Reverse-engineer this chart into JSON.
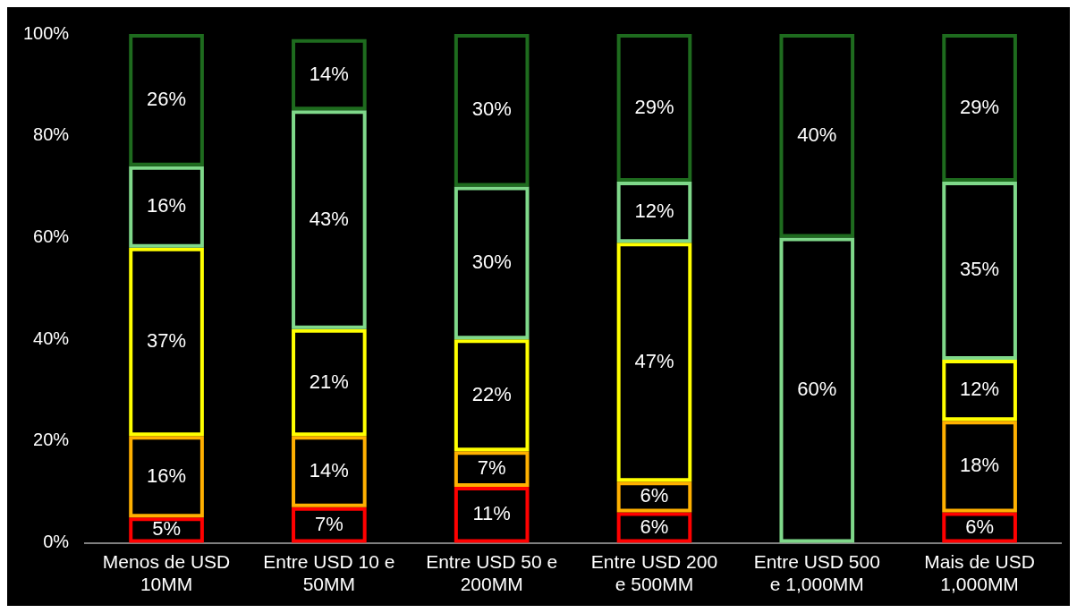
{
  "chart_data": {
    "type": "bar",
    "stacked": true,
    "grid": false,
    "legend": false,
    "categories": [
      "Menos de USD 10MM",
      "Entre USD 10 e 50MM",
      "Entre USD 50 e 200MM",
      "Entre USD 200 e 500MM",
      "Entre USD 500 e 1,000MM",
      "Mais de USD 1,000MM"
    ],
    "ylim": [
      0,
      100
    ],
    "yticks": [
      {
        "value": 0,
        "label": "0%"
      },
      {
        "value": 20,
        "label": "20%"
      },
      {
        "value": 40,
        "label": "40%"
      },
      {
        "value": 60,
        "label": "60%"
      },
      {
        "value": 80,
        "label": "80%"
      },
      {
        "value": 100,
        "label": "100%"
      }
    ],
    "series": [
      {
        "color": "#ff0000",
        "values": [
          5,
          7,
          11,
          6,
          null,
          6
        ],
        "value_labels": [
          "5%",
          "7%",
          "11%",
          "6%",
          null,
          "6%"
        ]
      },
      {
        "color": "#ffb000",
        "values": [
          16,
          14,
          7,
          6,
          null,
          18
        ],
        "value_labels": [
          "16%",
          "14%",
          "7%",
          "6%",
          null,
          "18%"
        ]
      },
      {
        "color": "#ffff00",
        "values": [
          37,
          21,
          22,
          47,
          null,
          12
        ],
        "value_labels": [
          "37%",
          "21%",
          "22%",
          "47%",
          null,
          "12%"
        ]
      },
      {
        "color": "#7fd88a",
        "values": [
          16,
          43,
          30,
          12,
          60,
          35
        ],
        "value_labels": [
          "16%",
          "43%",
          "30%",
          "12%",
          "60%",
          "35%"
        ]
      },
      {
        "color": "#1e6b1e",
        "values": [
          26,
          14,
          30,
          29,
          40,
          29
        ],
        "value_labels": [
          "26%",
          "14%",
          "30%",
          "29%",
          "40%",
          "29%"
        ]
      }
    ]
  }
}
